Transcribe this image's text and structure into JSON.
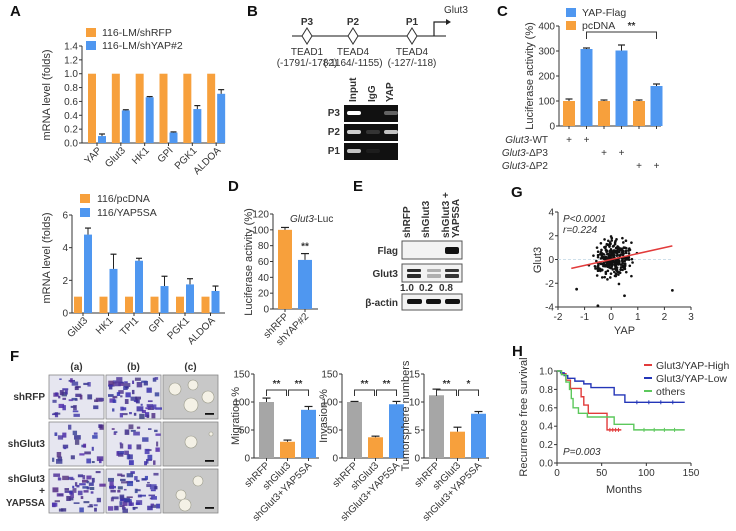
{
  "colors": {
    "orange": "#F7A03C",
    "blue": "#4F97F0",
    "gray": "#A6A6A6",
    "red": "#E23B3B",
    "navy": "#2436B8",
    "green": "#5CC85C",
    "axis": "#333333"
  },
  "panels": {
    "A": "A",
    "B": "B",
    "C": "C",
    "D": "D",
    "E": "E",
    "F": "F",
    "G": "G",
    "H": "H"
  },
  "chart_data": [
    {
      "id": "A-top",
      "type": "bar",
      "title": "",
      "xlabel": "",
      "ylabel": "mRNA level (folds)",
      "ylim": [
        0,
        1.4
      ],
      "yticks": [
        "0.0",
        "0.2",
        "0.4",
        "0.6",
        "0.8",
        "1.0",
        "1.2",
        "1.4"
      ],
      "categories": [
        "YAP",
        "Glut3",
        "HK1",
        "GPI",
        "PGK1",
        "ALDOA"
      ],
      "series": [
        {
          "name": "116-LM/shRFP",
          "color": "orange",
          "values": [
            1.0,
            1.0,
            1.0,
            1.0,
            1.0,
            1.0
          ],
          "errors": [
            0,
            0,
            0,
            0,
            0,
            0
          ]
        },
        {
          "name": "116-LM/shYAP#2",
          "color": "blue",
          "values": [
            0.1,
            0.47,
            0.66,
            0.15,
            0.49,
            0.71
          ],
          "errors": [
            0.03,
            0.01,
            0.01,
            0.01,
            0.05,
            0.06
          ]
        }
      ],
      "legend": "top"
    },
    {
      "id": "A-bottom",
      "type": "bar",
      "ylabel": "mRNA level (folds)",
      "ylim": [
        0,
        6
      ],
      "yticks": [
        "0",
        "2",
        "4",
        "6"
      ],
      "categories": [
        "Glut3",
        "HK1",
        "TPI1",
        "GPI",
        "PGK1",
        "ALDOA"
      ],
      "series": [
        {
          "name": "116/pcDNA",
          "color": "orange",
          "values": [
            1,
            1,
            1,
            1,
            1,
            1
          ],
          "errors": [
            0,
            0,
            0,
            0,
            0,
            0
          ]
        },
        {
          "name": "116/YAP5SA",
          "color": "blue",
          "values": [
            4.8,
            2.7,
            3.2,
            1.65,
            1.75,
            1.35
          ],
          "errors": [
            0.4,
            0.9,
            0.15,
            0.6,
            0.35,
            0.3
          ]
        }
      ],
      "legend": "top"
    },
    {
      "id": "C",
      "type": "bar",
      "ylabel": "Luciferase activity (%)",
      "ylim": [
        0,
        400
      ],
      "yticks": [
        "0",
        "100",
        "200",
        "300",
        "400"
      ],
      "series": [
        {
          "name": "YAP-Flag",
          "color": "blue"
        },
        {
          "name": "pcDNA",
          "color": "orange"
        }
      ],
      "bars": [
        {
          "series": "pcDNA",
          "value": 100,
          "error": 8
        },
        {
          "series": "YAP-Flag",
          "value": 308,
          "error": 4
        },
        {
          "series": "pcDNA",
          "value": 100,
          "error": 4
        },
        {
          "series": "YAP-Flag",
          "value": 302,
          "error": 22
        },
        {
          "series": "pcDNA",
          "value": 100,
          "error": 4
        },
        {
          "series": "YAP-Flag",
          "value": 160,
          "error": 8
        }
      ],
      "significance": {
        "label": "**",
        "from": 1,
        "to": 5
      },
      "conditions": [
        {
          "label_italic": "Glut3",
          "label_suffix": "-WT",
          "marks": [
            "+",
            "+",
            "",
            "",
            "",
            ""
          ]
        },
        {
          "label_italic": "Glut3",
          "label_suffix": "-ΔP3",
          "marks": [
            "",
            "",
            "+",
            "+",
            "",
            ""
          ]
        },
        {
          "label_italic": "Glut3",
          "label_suffix": "-ΔP2",
          "marks": [
            "",
            "",
            "",
            "",
            "+",
            "+"
          ]
        }
      ],
      "legend": "top"
    },
    {
      "id": "D",
      "type": "bar",
      "title_italic": "Glut3",
      "title_suffix": "-Luc",
      "ylabel": "Luciferase activity (%)",
      "ylim": [
        0,
        120
      ],
      "yticks": [
        "0",
        "20",
        "40",
        "60",
        "80",
        "100",
        "120"
      ],
      "categories": [
        "shRFP",
        "shYAP#2"
      ],
      "values": [
        100,
        62
      ],
      "errors": [
        3,
        8
      ],
      "colors": [
        "orange",
        "blue"
      ],
      "annotations": [
        "",
        "**"
      ]
    },
    {
      "id": "F-migration",
      "type": "bar",
      "ylabel": "Migration %",
      "ylim": [
        0,
        150
      ],
      "yticks": [
        "0",
        "50",
        "100",
        "150"
      ],
      "categories": [
        "shRFP",
        "shGlut3",
        "shGlut3+YAP5SA"
      ],
      "values": [
        100,
        29,
        86
      ],
      "errors": [
        7,
        3,
        6
      ],
      "colors": [
        "gray",
        "orange",
        "blue"
      ],
      "significance": [
        {
          "label": "**",
          "from": 0,
          "to": 1
        },
        {
          "label": "**",
          "from": 1,
          "to": 2
        }
      ]
    },
    {
      "id": "F-invasion",
      "type": "bar",
      "ylabel": "Invasion %",
      "ylim": [
        0,
        150
      ],
      "yticks": [
        "0",
        "50",
        "100",
        "150"
      ],
      "categories": [
        "shRFP",
        "shGlut3",
        "shGlut3+YAP5SA"
      ],
      "values": [
        100,
        37,
        96
      ],
      "errors": [
        1,
        2,
        5
      ],
      "colors": [
        "gray",
        "orange",
        "blue"
      ],
      "significance": [
        {
          "label": "**",
          "from": 0,
          "to": 1
        },
        {
          "label": "**",
          "from": 1,
          "to": 2
        }
      ]
    },
    {
      "id": "F-tumorsphere",
      "type": "bar",
      "ylabel": "Tumorsphere numbers",
      "ylim": [
        0,
        15
      ],
      "yticks": [
        "0",
        "5",
        "10",
        "15"
      ],
      "categories": [
        "shRFP",
        "shGlut3",
        "shGlut3+YAP5SA"
      ],
      "values": [
        11.2,
        4.7,
        7.9
      ],
      "errors": [
        1.1,
        0.8,
        0.4
      ],
      "colors": [
        "gray",
        "orange",
        "blue"
      ],
      "significance": [
        {
          "label": "**",
          "from": 0,
          "to": 1
        },
        {
          "label": "*",
          "from": 1,
          "to": 2
        }
      ]
    },
    {
      "id": "G",
      "type": "scatter",
      "xlabel": "YAP",
      "ylabel": "Glut3",
      "xlim": [
        -2,
        3
      ],
      "ylim": [
        -4,
        4
      ],
      "xticks": [
        "-2",
        "-1",
        "0",
        "1",
        "2",
        "3"
      ],
      "yticks": [
        "-4",
        "-2",
        "0",
        "2",
        "4"
      ],
      "annotations": [
        "P<0.0001",
        "r=0.224"
      ],
      "fit_line": {
        "x": [
          -1.5,
          2.3
        ],
        "y": [
          -0.75,
          1.15
        ],
        "color": "red"
      },
      "n_points": 300,
      "outliers": [
        [
          2.3,
          -2.6
        ],
        [
          -1.3,
          -2.5
        ],
        [
          -0.5,
          -3.9
        ],
        [
          0.5,
          -3.05
        ]
      ]
    },
    {
      "id": "H",
      "type": "line",
      "xlabel": "Months",
      "ylabel": "Recurrence free survival",
      "xlim": [
        0,
        150
      ],
      "ylim": [
        0,
        1.0
      ],
      "xticks": [
        "0",
        "50",
        "100",
        "150"
      ],
      "yticks": [
        "0.0",
        "0.2",
        "0.4",
        "0.6",
        "0.8",
        "1.0"
      ],
      "annotation": "P=0.003",
      "legend": "top-right",
      "series": [
        {
          "name": "Glut3/YAP-High",
          "color": "red",
          "steps": [
            [
              0,
              1.0
            ],
            [
              5,
              0.97
            ],
            [
              10,
              0.9
            ],
            [
              15,
              0.81
            ],
            [
              27,
              0.72
            ],
            [
              30,
              0.63
            ],
            [
              35,
              0.54
            ],
            [
              56,
              0.36
            ],
            [
              72,
              0.36
            ]
          ]
        },
        {
          "name": "Glut3/YAP-Low",
          "color": "navy",
          "steps": [
            [
              0,
              1.0
            ],
            [
              4,
              0.98
            ],
            [
              8,
              0.95
            ],
            [
              12,
              0.92
            ],
            [
              20,
              0.89
            ],
            [
              30,
              0.86
            ],
            [
              38,
              0.82
            ],
            [
              64,
              0.74
            ],
            [
              76,
              0.66
            ],
            [
              143,
              0.66
            ]
          ]
        },
        {
          "name": "others",
          "color": "green",
          "steps": [
            [
              0,
              1.0
            ],
            [
              5,
              0.96
            ],
            [
              10,
              0.88
            ],
            [
              14,
              0.8
            ],
            [
              16,
              0.7
            ],
            [
              18,
              0.6
            ],
            [
              24,
              0.54
            ],
            [
              34,
              0.5
            ],
            [
              64,
              0.42
            ],
            [
              86,
              0.36
            ],
            [
              143,
              0.36
            ]
          ]
        }
      ]
    }
  ],
  "panel_B": {
    "gene": "Glut3",
    "sites": [
      {
        "name": "P3",
        "factor": "TEAD1",
        "pos": "(-1791/-1782)"
      },
      {
        "name": "P2",
        "factor": "TEAD4",
        "pos": "(-1164/-1155)"
      },
      {
        "name": "P1",
        "factor": "TEAD4",
        "pos": "(-127/-118)"
      }
    ],
    "gel_lanes": [
      "Input",
      "IgG",
      "YAP"
    ],
    "gel_rows": [
      "P3",
      "P2",
      "P1"
    ]
  },
  "panel_E": {
    "lanes": [
      "shRFP",
      "shGlut3",
      "shGlut3 +\nYAP5SA"
    ],
    "lane_line1": [
      "shRFP",
      "shGlut3",
      "shGlut3 +"
    ],
    "lane_line2": [
      "",
      "",
      "YAP5SA"
    ],
    "rows": [
      "Flag",
      "Glut3",
      "β-actin"
    ],
    "quant": [
      "1.0",
      "0.2",
      "0.8"
    ]
  },
  "panel_F_images": {
    "columns": [
      "(a)",
      "(b)",
      "(c)"
    ],
    "rows": [
      "shRFP",
      "shGlut3",
      "shGlut3",
      "+",
      "YAP5SA"
    ],
    "row_labels": [
      [
        "shRFP"
      ],
      [
        "shGlut3"
      ],
      [
        "shGlut3",
        "+",
        "YAP5SA"
      ]
    ]
  }
}
